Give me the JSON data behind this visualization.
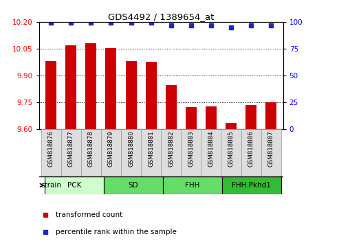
{
  "title": "GDS4492 / 1389654_at",
  "samples": [
    "GSM818876",
    "GSM818877",
    "GSM818878",
    "GSM818879",
    "GSM818880",
    "GSM818881",
    "GSM818882",
    "GSM818883",
    "GSM818884",
    "GSM818885",
    "GSM818886",
    "GSM818887"
  ],
  "bar_values": [
    9.98,
    10.07,
    10.08,
    10.055,
    9.98,
    9.975,
    9.845,
    9.72,
    9.725,
    9.635,
    9.735,
    9.75
  ],
  "percentile_values": [
    99,
    99,
    99,
    99,
    99,
    99,
    97,
    97,
    97,
    95,
    97,
    97
  ],
  "bar_color": "#cc0000",
  "percentile_color": "#2222cc",
  "ylim_left": [
    9.6,
    10.2
  ],
  "yticks_left": [
    9.6,
    9.75,
    9.9,
    10.05,
    10.2
  ],
  "yticks_right": [
    0,
    25,
    50,
    75,
    100
  ],
  "groups": [
    {
      "label": "PCK",
      "start": 0,
      "end": 3,
      "color": "#ccffcc"
    },
    {
      "label": "SD",
      "start": 3,
      "end": 6,
      "color": "#66dd66"
    },
    {
      "label": "FHH",
      "start": 6,
      "end": 9,
      "color": "#66dd66"
    },
    {
      "label": "FHH.Pkhd1",
      "start": 9,
      "end": 12,
      "color": "#33bb33"
    }
  ],
  "legend_items": [
    {
      "label": "transformed count",
      "color": "#cc0000"
    },
    {
      "label": "percentile rank within the sample",
      "color": "#2222cc"
    }
  ],
  "strain_label": "strain"
}
